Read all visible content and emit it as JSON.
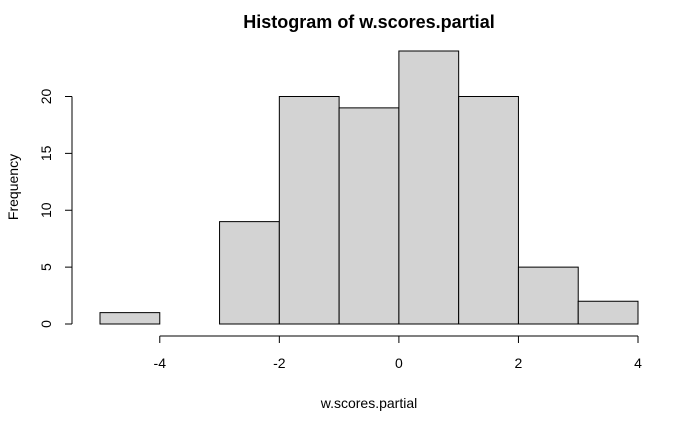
{
  "chart_data": {
    "type": "bar",
    "title": "Histogram of w.scores.partial",
    "xlabel": "w.scores.partial",
    "ylabel": "Frequency",
    "bins": [
      {
        "x0": -5,
        "x1": -4,
        "count": 1
      },
      {
        "x0": -4,
        "x1": -3,
        "count": 0
      },
      {
        "x0": -3,
        "x1": -2,
        "count": 9
      },
      {
        "x0": -2,
        "x1": -1,
        "count": 20
      },
      {
        "x0": -1,
        "x1": 0,
        "count": 19
      },
      {
        "x0": 0,
        "x1": 1,
        "count": 24
      },
      {
        "x0": 1,
        "x1": 2,
        "count": 20
      },
      {
        "x0": 2,
        "x1": 3,
        "count": 5
      },
      {
        "x0": 3,
        "x1": 4,
        "count": 2
      }
    ],
    "xlim": [
      -5,
      4
    ],
    "ylim": [
      0,
      24
    ],
    "xticks": [
      -4,
      -2,
      0,
      2,
      4
    ],
    "yticks": [
      0,
      5,
      10,
      15,
      20
    ],
    "grid": false,
    "colors": {
      "bar_fill": "#d3d3d3",
      "bar_stroke": "#000000"
    }
  }
}
